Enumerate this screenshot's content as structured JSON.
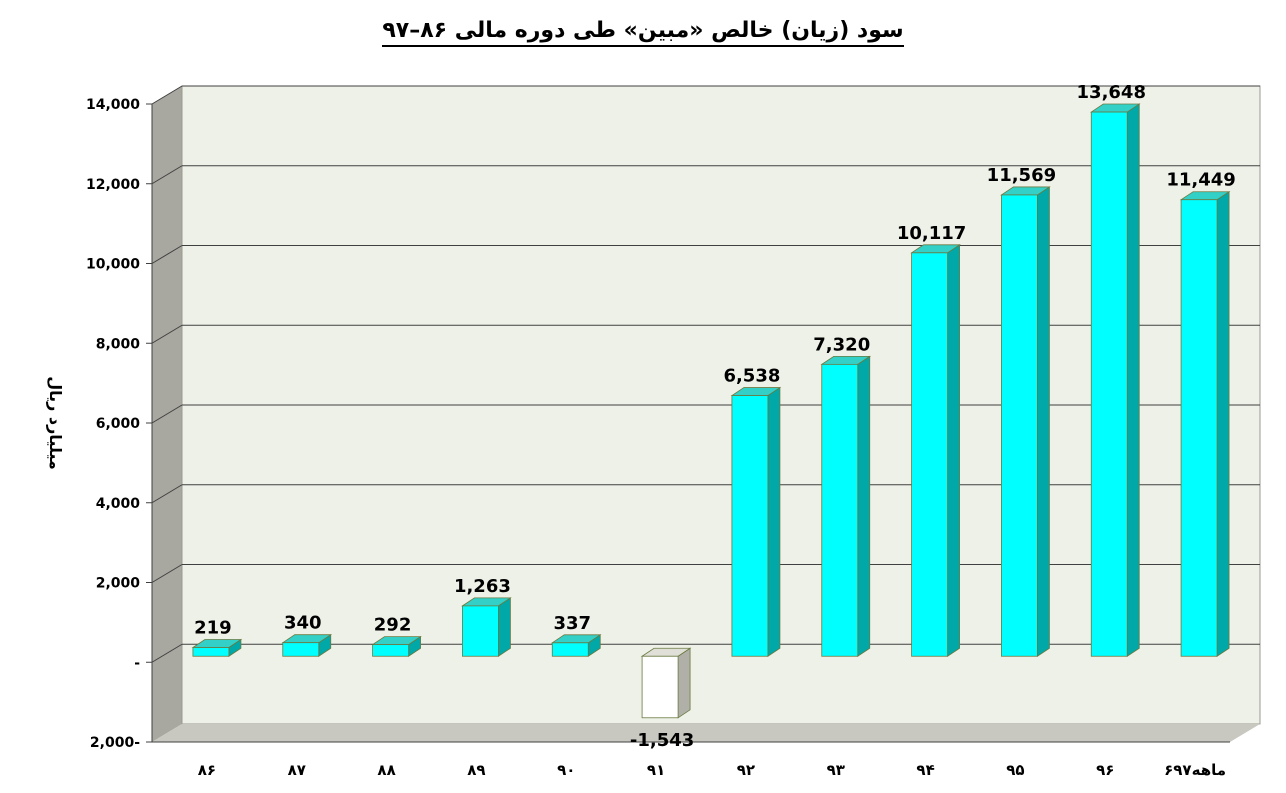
{
  "chart_data": {
    "type": "bar",
    "title": "سود (زیان) خالص «مبین» طی دوره مالی ۸۶–۹۷",
    "ylabel": "میلیارد ریال",
    "xlabel": "",
    "categories": [
      "۸۶",
      "۸۷",
      "۸۸",
      "۸۹",
      "۹۰",
      "۹۱",
      "۹۲",
      "۹۳",
      "۹۴",
      "۹۵",
      "۹۶",
      "۶ماهه۹۷"
    ],
    "values": [
      219,
      340,
      292,
      1263,
      337,
      -1543,
      6538,
      7320,
      10117,
      11569,
      13648,
      11449
    ],
    "data_labels": [
      "219",
      "340",
      "292",
      "1,263",
      "337",
      "-1,543",
      "6,538",
      "7,320",
      "10,117",
      "11,569",
      "13,648",
      "11,449"
    ],
    "ylim": [
      -2000,
      14000
    ],
    "yticks": [
      -2000,
      0,
      2000,
      4000,
      6000,
      8000,
      10000,
      12000,
      14000
    ],
    "ytick_labels": [
      "2,000-",
      "-",
      "2,000",
      "4,000",
      "6,000",
      "8,000",
      "10,000",
      "12,000",
      "14,000"
    ],
    "grid": true,
    "legend": "none",
    "style": "3d-column",
    "colors": {
      "positive_front": "#00FFFF",
      "positive_side": "#00A8A8",
      "positive_top": "#33D0C8",
      "negative_front": "#FFFFFF",
      "negative_side": "#B0B0A8",
      "wall": "#EEF1E8",
      "side_wall": "#A8A8A0",
      "floor": "#C8C8C0",
      "gridline": "#404040"
    }
  }
}
